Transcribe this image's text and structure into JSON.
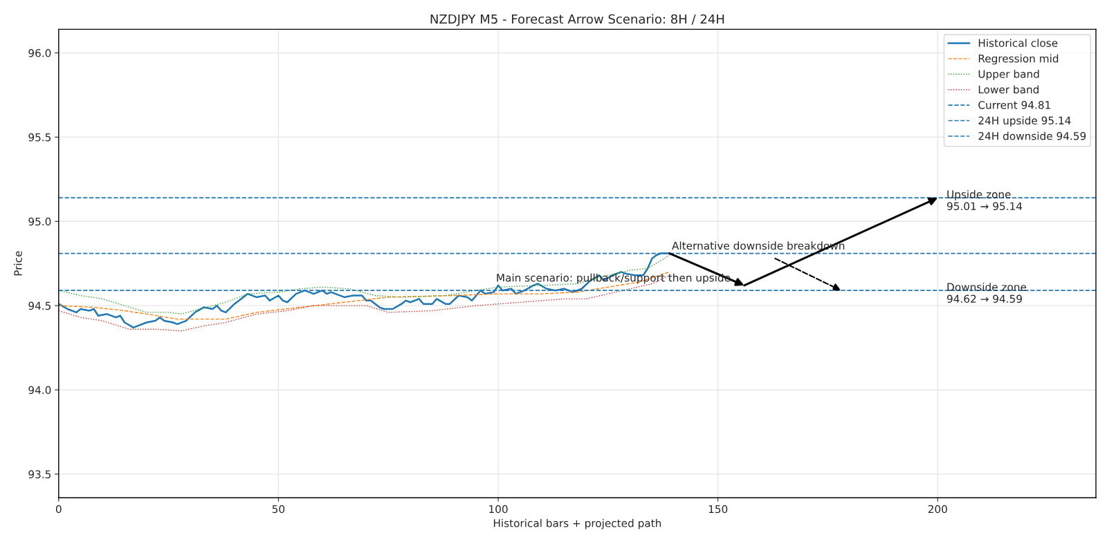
{
  "chart_data": {
    "type": "line",
    "title": "NZDJPY M5 - Forecast Arrow Scenario: 8H / 24H",
    "xlabel": "Historical bars + projected path",
    "ylabel": "Price",
    "xlim": [
      0,
      236
    ],
    "ylim": [
      93.36,
      96.14
    ],
    "xticks": [
      0,
      50,
      100,
      150,
      200
    ],
    "yticks": [
      93.5,
      {
        "value": 94,
        "label": "94.0"
      },
      94.5,
      {
        "value": 95,
        "label": "95.0"
      },
      95.5,
      {
        "value": 96,
        "label": "96.0"
      }
    ],
    "grid": true,
    "legend": "top right",
    "marker": "none",
    "series": [
      {
        "name": "Historical close",
        "color": "#1f77b4",
        "line_style": "solid",
        "x": [
          0,
          2,
          4,
          5,
          7,
          8,
          9,
          11,
          13,
          14,
          15,
          17,
          18,
          20,
          22,
          23,
          24,
          26,
          27,
          29,
          31,
          33,
          35,
          36,
          37,
          38,
          40,
          42,
          43,
          45,
          47,
          48,
          50,
          51,
          52,
          54,
          56,
          57,
          58,
          60,
          61,
          62,
          63,
          65,
          67,
          69,
          70,
          71,
          73,
          74,
          76,
          78,
          79,
          80,
          82,
          83,
          85,
          86,
          88,
          89,
          91,
          93,
          94,
          96,
          97,
          99,
          100,
          101,
          103,
          104,
          106,
          108,
          109,
          111,
          113,
          115,
          117,
          119,
          121,
          123,
          124,
          126,
          128,
          129,
          131,
          133,
          134,
          135,
          136,
          137,
          139
        ],
        "values": [
          94.51,
          94.48,
          94.46,
          94.48,
          94.47,
          94.48,
          94.44,
          94.45,
          94.43,
          94.44,
          94.4,
          94.37,
          94.38,
          94.4,
          94.41,
          94.43,
          94.41,
          94.4,
          94.39,
          94.41,
          94.46,
          94.49,
          94.48,
          94.5,
          94.47,
          94.46,
          94.51,
          94.55,
          94.57,
          94.55,
          94.56,
          94.53,
          94.56,
          94.53,
          94.52,
          94.57,
          94.59,
          94.58,
          94.57,
          94.59,
          94.57,
          94.58,
          94.57,
          94.55,
          94.56,
          94.56,
          94.53,
          94.53,
          94.49,
          94.48,
          94.48,
          94.51,
          94.53,
          94.52,
          94.54,
          94.51,
          94.51,
          94.54,
          94.51,
          94.51,
          94.56,
          94.55,
          94.53,
          94.59,
          94.57,
          94.58,
          94.62,
          94.59,
          94.6,
          94.57,
          94.59,
          94.62,
          94.63,
          94.6,
          94.59,
          94.6,
          94.58,
          94.6,
          94.65,
          94.68,
          94.65,
          94.68,
          94.7,
          94.69,
          94.68,
          94.68,
          94.72,
          94.78,
          94.8,
          94.81,
          94.81
        ]
      },
      {
        "name": "Regression mid",
        "color": "#ff7f0e",
        "line_style": "dashed",
        "x": [
          0,
          8,
          15,
          20,
          27,
          38,
          45,
          55,
          65,
          75,
          90,
          100,
          110,
          118,
          125,
          132,
          139
        ],
        "values": [
          94.5,
          94.49,
          94.47,
          94.45,
          94.42,
          94.42,
          94.46,
          94.49,
          94.52,
          94.55,
          94.56,
          94.57,
          94.57,
          94.58,
          94.61,
          94.64,
          94.7
        ]
      },
      {
        "name": "Upper band",
        "color": "#2ca02c",
        "line_style": "dotted",
        "x": [
          0,
          5,
          10,
          15,
          20,
          25,
          28,
          32,
          38,
          43,
          50,
          55,
          60,
          66,
          72,
          78,
          88,
          95,
          100,
          110,
          118,
          125,
          130,
          134,
          139
        ],
        "values": [
          94.59,
          94.56,
          94.54,
          94.5,
          94.46,
          94.46,
          94.45,
          94.48,
          94.52,
          94.57,
          94.58,
          94.6,
          94.61,
          94.6,
          94.56,
          94.55,
          94.56,
          94.59,
          94.61,
          94.62,
          94.63,
          94.68,
          94.71,
          94.72,
          94.8
        ]
      },
      {
        "name": "Lower band",
        "color": "#d62728",
        "line_style": "dotted",
        "x": [
          0,
          5,
          10,
          16,
          22,
          28,
          33,
          38,
          45,
          52,
          58,
          65,
          70,
          75,
          85,
          95,
          105,
          115,
          120,
          125,
          130,
          135,
          139
        ],
        "values": [
          94.47,
          94.43,
          94.41,
          94.36,
          94.36,
          94.35,
          94.38,
          94.4,
          94.45,
          94.47,
          94.5,
          94.5,
          94.5,
          94.46,
          94.47,
          94.5,
          94.52,
          94.54,
          94.54,
          94.57,
          94.6,
          94.63,
          94.68
        ]
      }
    ],
    "ref_lines": [
      {
        "axis": "y",
        "value": 94.81,
        "label": "Current 94.81",
        "color": "#1f77b4",
        "line_style": "dashed"
      },
      {
        "axis": "y",
        "value": 95.14,
        "label": "24H upside 95.14",
        "color": "#1f77b4",
        "line_style": "dashed"
      },
      {
        "axis": "y",
        "value": 94.59,
        "label": "24H downside 94.59",
        "color": "#1f77b4",
        "line_style": "dashed"
      }
    ],
    "annotations": [
      {
        "text": "Main scenario: pullback/support then upside",
        "x": 99.5,
        "y": 94.63
      },
      {
        "text": "Alternative downside breakdown",
        "x": 139.5,
        "y": 94.82
      },
      {
        "text": "Upside zone\n95.01 → 95.14",
        "x": 202,
        "y": 95.12
      },
      {
        "text": "Downside zone\n94.62 → 94.59",
        "x": 202,
        "y": 94.57
      }
    ]
  }
}
